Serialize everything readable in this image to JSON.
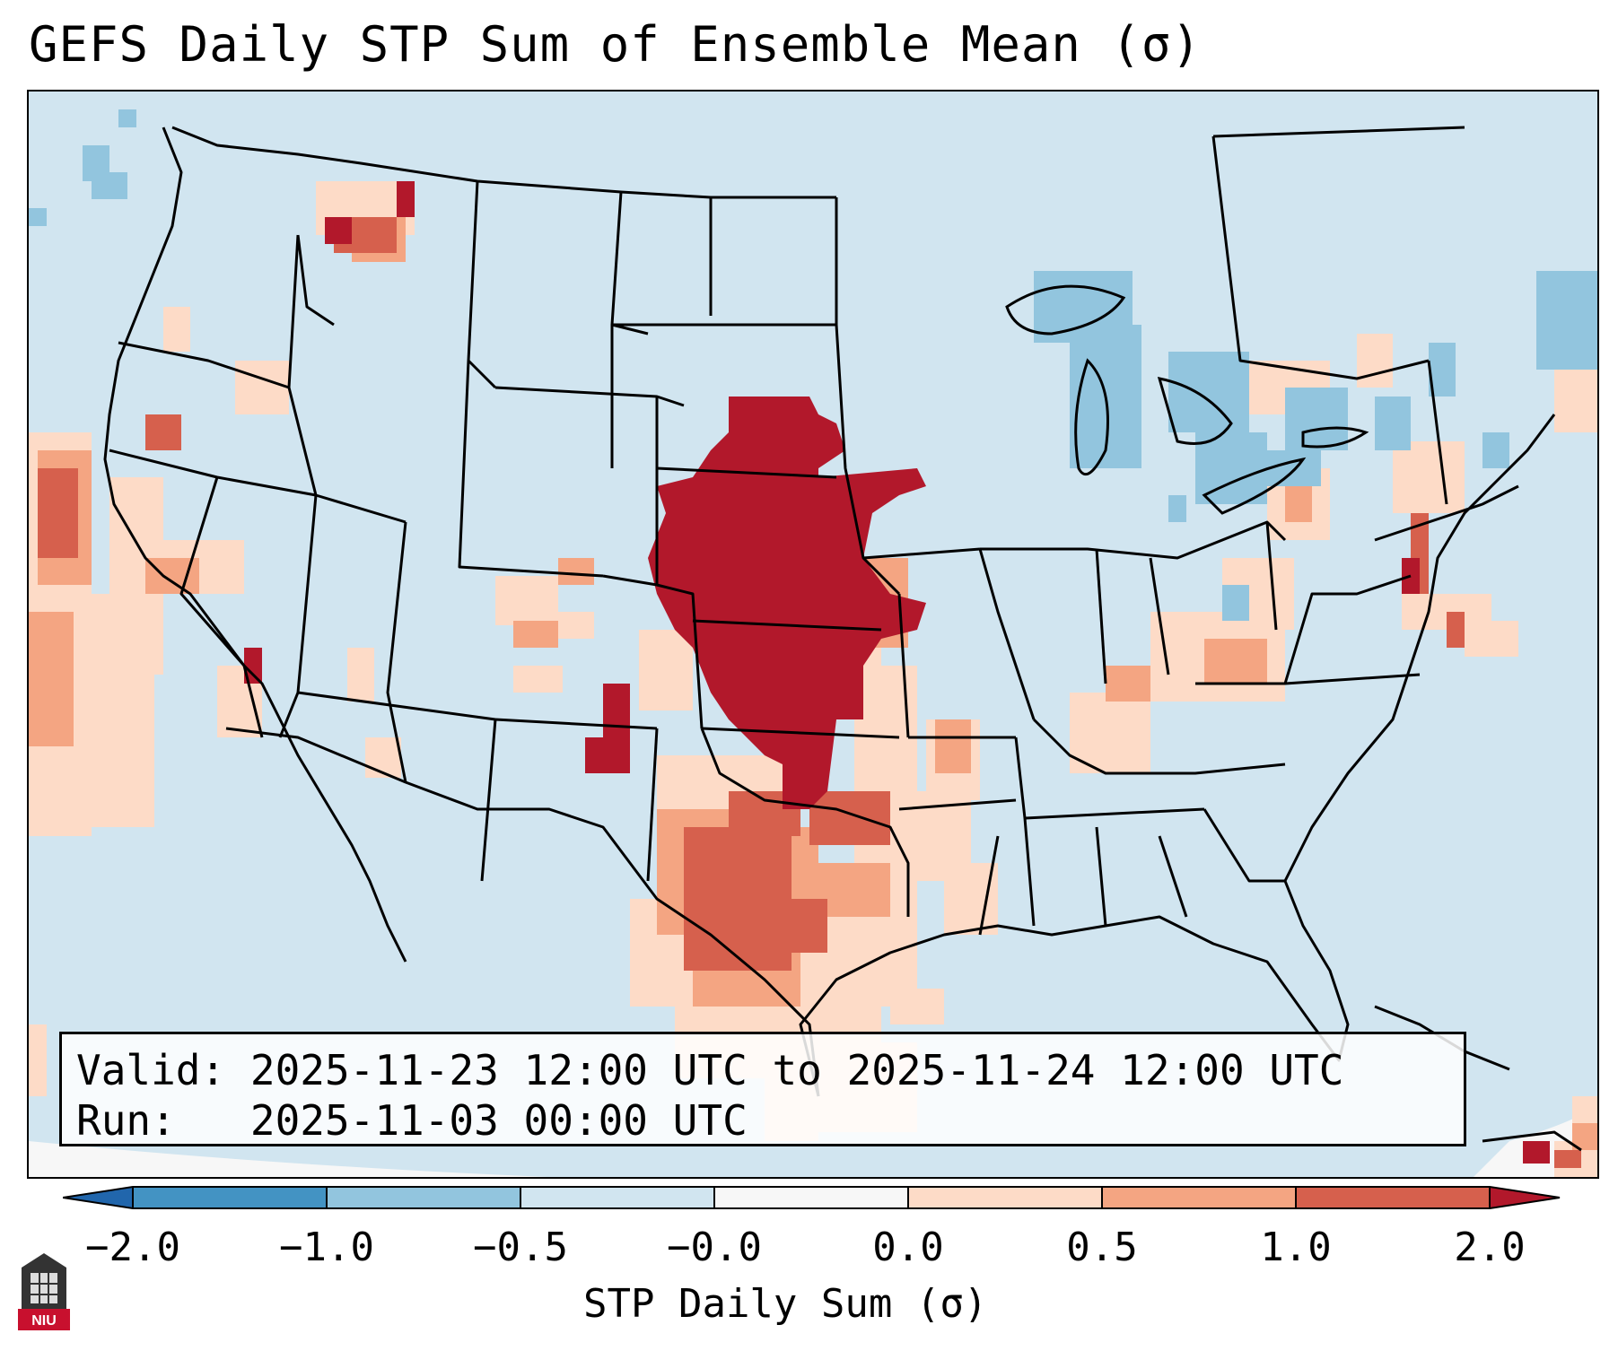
{
  "title": "GEFS Daily STP Sum of Ensemble Mean (σ)",
  "info": {
    "valid_label": "Valid:",
    "valid_value": "2025-11-23 12:00 UTC to 2025-11-24 12:00 UTC",
    "run_label": "Run:",
    "run_value": "2025-11-03 00:00 UTC"
  },
  "colorbar": {
    "label": "STP Daily Sum (σ)",
    "ticks": [
      "−2.0",
      "−1.0",
      "−0.5",
      "−0.0",
      "0.0",
      "0.5",
      "1.0",
      "2.0"
    ],
    "bins": [
      {
        "range": "< -2.0",
        "color": "#2166ac"
      },
      {
        "range": "-2.0 to -1.0",
        "color": "#4393c3"
      },
      {
        "range": "-1.0 to -0.5",
        "color": "#92c5de"
      },
      {
        "range": "-0.5 to -0.0",
        "color": "#d1e5f0"
      },
      {
        "range": "-0.0 to 0.0",
        "color": "#f7f7f7"
      },
      {
        "range": "0.0 to 0.5",
        "color": "#fddbc7"
      },
      {
        "range": "0.5 to 1.0",
        "color": "#f4a582"
      },
      {
        "range": "1.0 to 2.0",
        "color": "#d6604d"
      },
      {
        "range": "> 2.0",
        "color": "#b2182b"
      }
    ]
  },
  "map": {
    "region": "Contiguous United States",
    "background_color": "#d1e5f0",
    "max_signal_color": "#b2182b",
    "max_signal_area": "Nebraska / Kansas / Oklahoma",
    "moderate_signal_area": "Texas / Oklahoma"
  },
  "logo": {
    "text": "NIU"
  }
}
